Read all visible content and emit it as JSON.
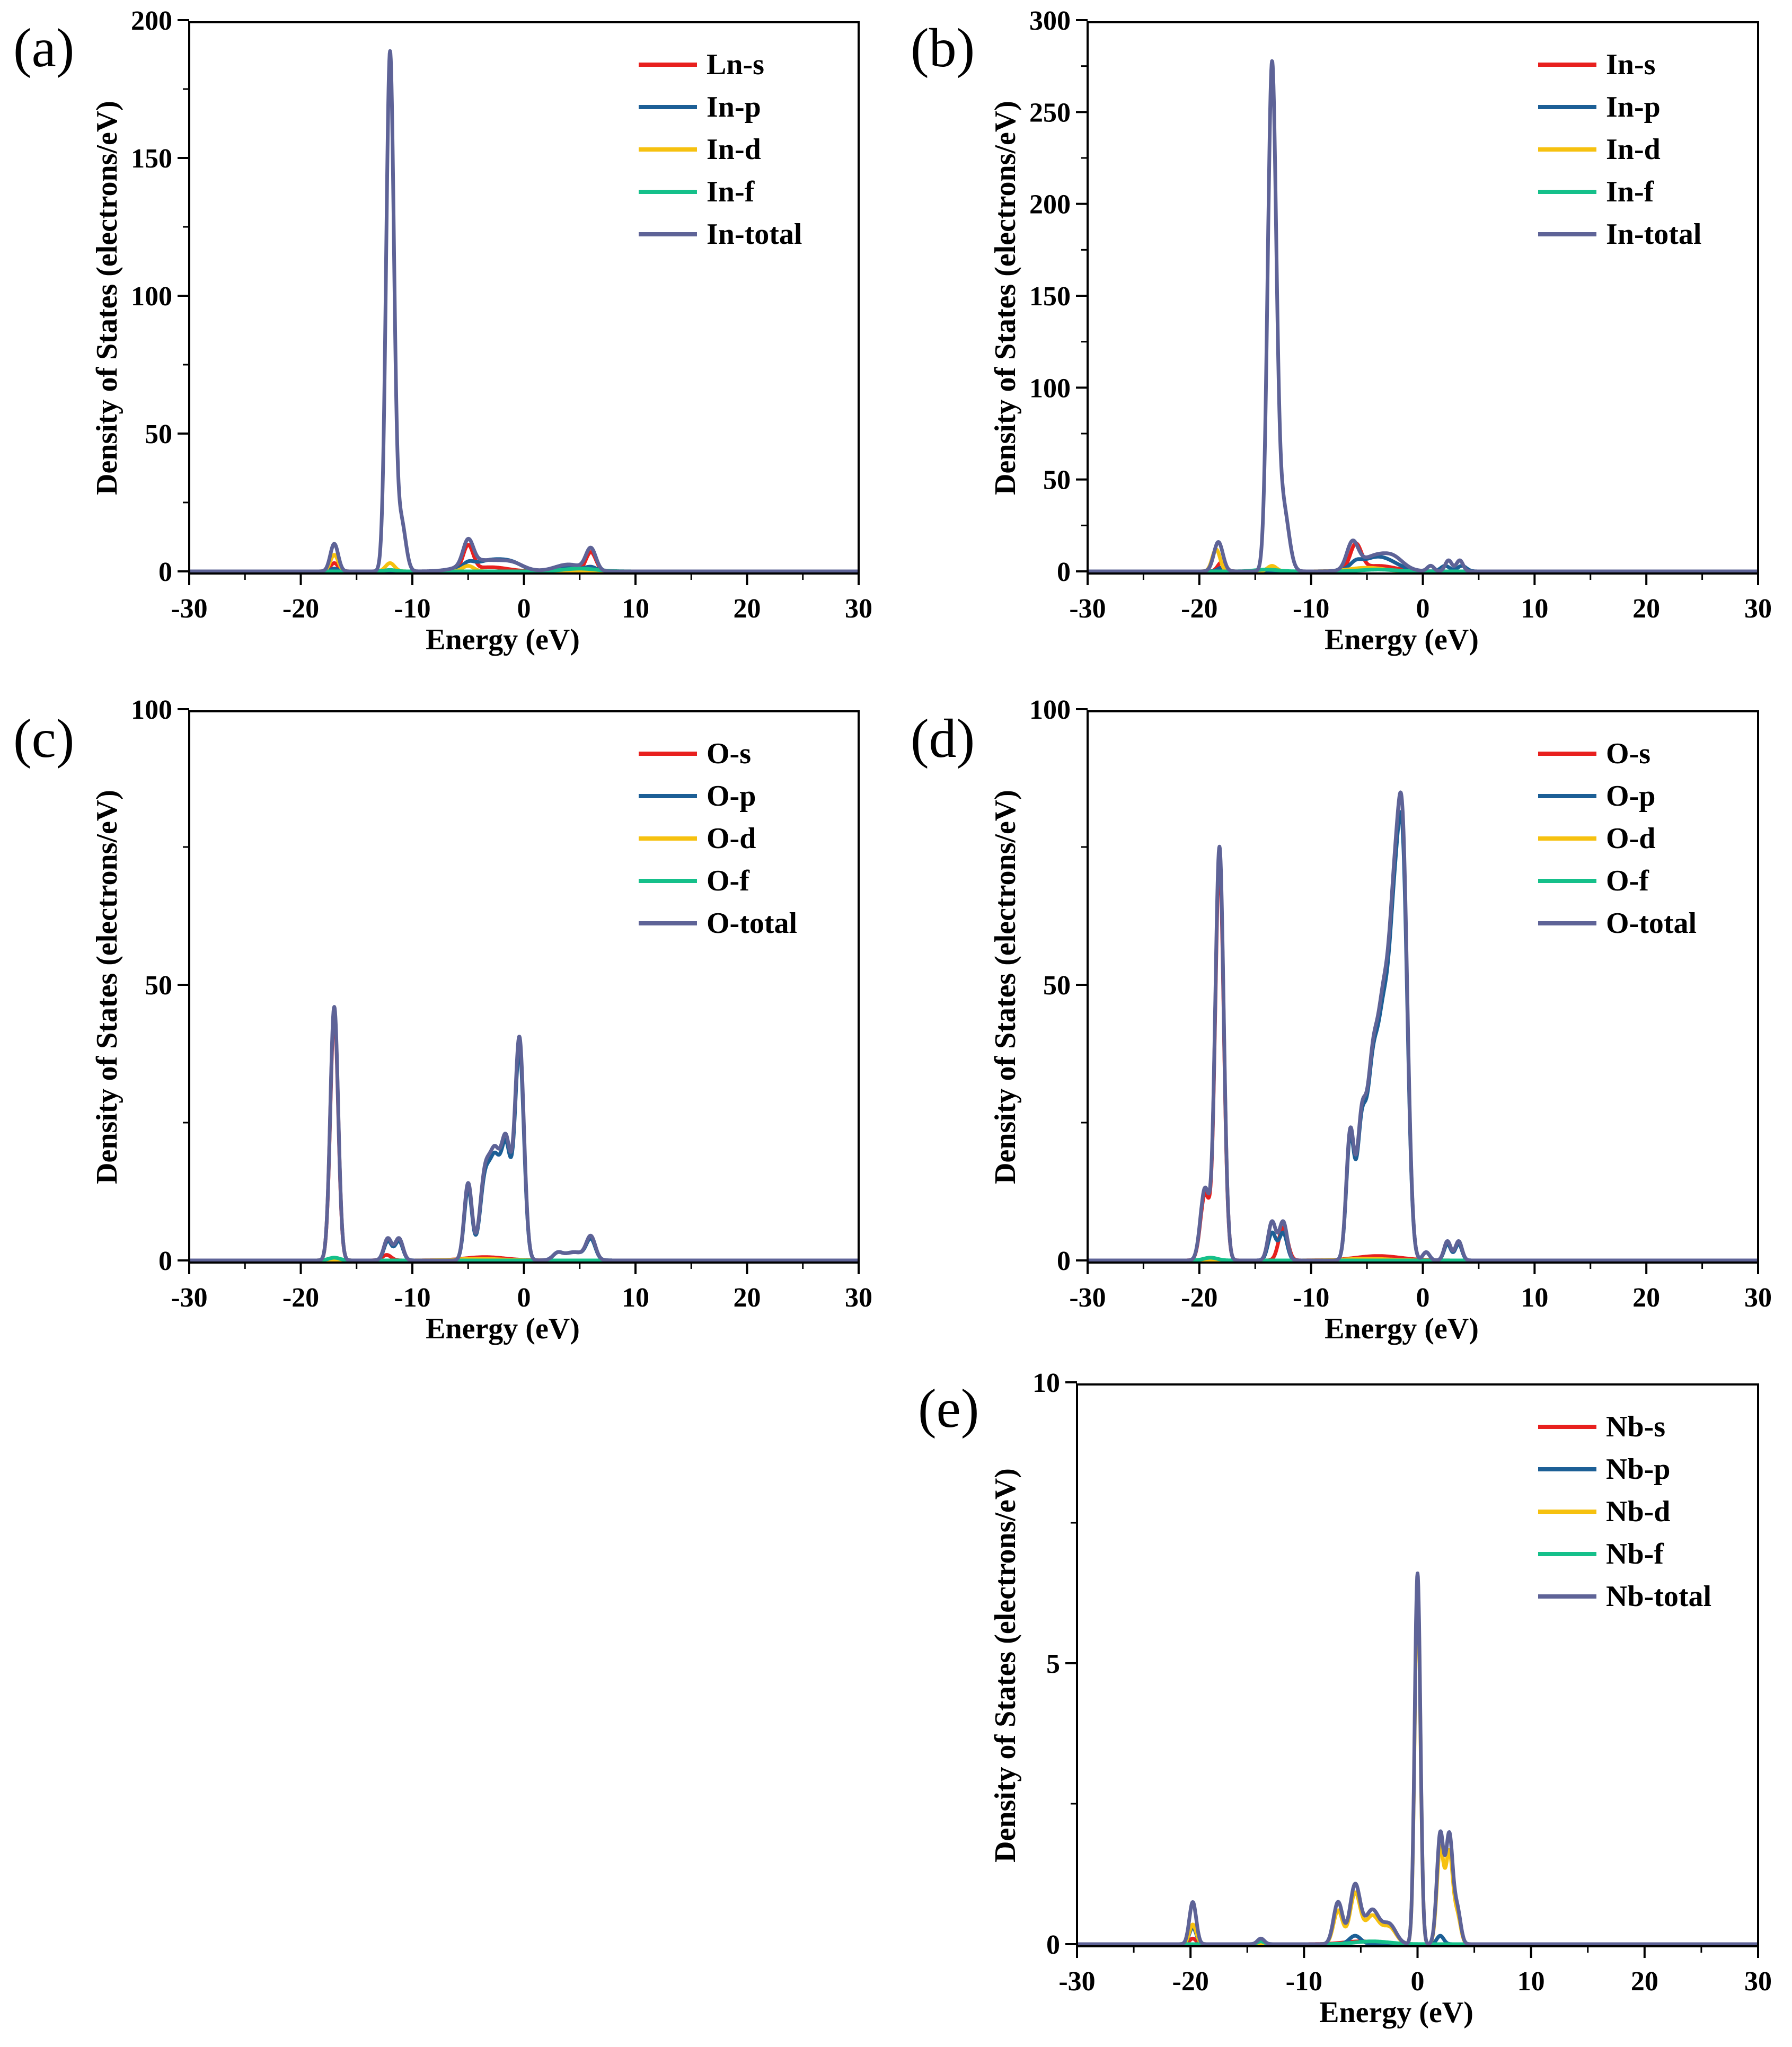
{
  "colors": {
    "s": "#e8201e",
    "p": "#1c5f96",
    "d": "#f6c10f",
    "f": "#15c08a",
    "total": "#5e6397"
  },
  "chart_data": [
    {
      "id": "a",
      "panel_label": "(a)",
      "type": "line",
      "xlabel": "Energy (eV)",
      "ylabel": "Density of States (electrons/eV)",
      "xlim": [
        -30,
        30
      ],
      "ylim": [
        0,
        200
      ],
      "xticks": [
        -30,
        -20,
        -10,
        0,
        10,
        20,
        30
      ],
      "yticks": [
        0,
        50,
        100,
        150,
        200
      ],
      "legend": [
        "Ln-s",
        "In-p",
        "In-d",
        "In-f",
        "In-total"
      ],
      "series": [
        {
          "name": "Ln-s",
          "key": "s",
          "peaks": [
            [
              -17,
              3,
              0.35
            ],
            [
              -5,
              9,
              0.45
            ],
            [
              6,
              7,
              0.45
            ]
          ],
          "bumps": [
            [
              -3,
              1.5,
              1.5
            ]
          ]
        },
        {
          "name": "In-p",
          "key": "p",
          "peaks": [
            [
              -17,
              1,
              0.35
            ],
            [
              -5,
              2,
              0.5
            ],
            [
              6,
              1.5,
              0.5
            ]
          ],
          "bumps": [
            [
              -3,
              4,
              1.5
            ],
            [
              -1,
              2,
              1
            ],
            [
              4,
              1.5,
              1
            ]
          ]
        },
        {
          "name": "In-d",
          "key": "d",
          "peaks": [
            [
              -17,
              6,
              0.35
            ],
            [
              -12,
              3,
              0.4
            ],
            [
              -5,
              2,
              0.5
            ]
          ],
          "bumps": []
        },
        {
          "name": "In-f",
          "key": "f",
          "peaks": [
            [
              -12,
              0.5,
              0.5
            ]
          ],
          "bumps": [
            [
              5,
              1,
              1.5
            ]
          ]
        },
        {
          "name": "In-total",
          "key": "total",
          "peaks": [
            [
              -17,
              10,
              0.35
            ],
            [
              -12,
              188,
              0.35
            ],
            [
              -11,
              18,
              0.4
            ],
            [
              -5,
              9,
              0.45
            ],
            [
              6,
              8,
              0.45
            ]
          ],
          "bumps": [
            [
              -3.5,
              4,
              1.8
            ],
            [
              -1,
              2,
              1
            ],
            [
              4,
              2.5,
              1.2
            ]
          ]
        }
      ]
    },
    {
      "id": "b",
      "panel_label": "(b)",
      "type": "line",
      "xlabel": "Energy (eV)",
      "ylabel": "Density of States (electrons/eV)",
      "xlim": [
        -30,
        30
      ],
      "ylim": [
        0,
        300
      ],
      "xticks": [
        -30,
        -20,
        -10,
        0,
        10,
        20,
        30
      ],
      "yticks": [
        0,
        50,
        100,
        150,
        200,
        250,
        300
      ],
      "legend": [
        "In-s",
        "In-p",
        "In-d",
        "In-f",
        "In-total"
      ],
      "series": [
        {
          "name": "In-s",
          "key": "s",
          "peaks": [
            [
              -18,
              5,
              0.35
            ],
            [
              -6,
              14,
              0.5
            ]
          ],
          "bumps": [
            [
              -4,
              3,
              1.5
            ]
          ]
        },
        {
          "name": "In-p",
          "key": "p",
          "peaks": [
            [
              -18,
              2,
              0.35
            ],
            [
              -6,
              3,
              0.5
            ]
          ],
          "bumps": [
            [
              -4,
              8,
              1.5
            ],
            [
              2,
              3,
              0.4
            ],
            [
              3.5,
              3,
              0.4
            ]
          ]
        },
        {
          "name": "In-d",
          "key": "d",
          "peaks": [
            [
              -18.5,
              12,
              0.35
            ],
            [
              -13.5,
              3,
              0.4
            ]
          ],
          "bumps": [
            [
              -5,
              2,
              1.5
            ]
          ]
        },
        {
          "name": "In-f",
          "key": "f",
          "peaks": [],
          "bumps": [
            [
              -14,
              1,
              1
            ],
            [
              -4,
              1,
              1.5
            ]
          ]
        },
        {
          "name": "In-total",
          "key": "total",
          "peaks": [
            [
              -18.3,
              16,
              0.4
            ],
            [
              -13.5,
              273,
              0.38
            ],
            [
              -12.5,
              35,
              0.5
            ],
            [
              -6.3,
              14,
              0.5
            ],
            [
              0.7,
              3,
              0.3
            ],
            [
              2.3,
              6,
              0.3
            ],
            [
              3.3,
              6,
              0.3
            ]
          ],
          "bumps": [
            [
              -4,
              9,
              1.5
            ],
            [
              -2.5,
              3,
              0.8
            ]
          ]
        }
      ]
    },
    {
      "id": "c",
      "panel_label": "(c)",
      "type": "line",
      "xlabel": "Energy (eV)",
      "ylabel": "Density of States (electrons/eV)",
      "xlim": [
        -30,
        30
      ],
      "ylim": [
        0,
        100
      ],
      "xticks": [
        -30,
        -20,
        -10,
        0,
        10,
        20,
        30
      ],
      "yticks": [
        0,
        50,
        100
      ],
      "legend": [
        "O-s",
        "O-p",
        "O-d",
        "O-f",
        "O-total"
      ],
      "series": [
        {
          "name": "O-s",
          "key": "s",
          "peaks": [
            [
              -17,
              45,
              0.35
            ],
            [
              -12.3,
              1,
              0.4
            ]
          ],
          "bumps": [
            [
              -3.5,
              0.6,
              1.8
            ]
          ]
        },
        {
          "name": "O-p",
          "key": "p",
          "peaks": [
            [
              -12.2,
              3.5,
              0.35
            ],
            [
              -11.2,
              3.5,
              0.35
            ],
            [
              -5,
              13,
              0.35
            ],
            [
              -3.5,
              14,
              0.45
            ],
            [
              -2.6,
              16,
              0.45
            ],
            [
              -1.6,
              20,
              0.45
            ],
            [
              -0.4,
              38,
              0.4
            ],
            [
              3,
              1,
              0.4
            ],
            [
              6,
              3.5,
              0.4
            ]
          ],
          "bumps": [
            [
              4.5,
              1.5,
              1
            ]
          ]
        },
        {
          "name": "O-d",
          "key": "d",
          "peaks": [],
          "bumps": [
            [
              -4,
              0.3,
              2
            ]
          ]
        },
        {
          "name": "O-f",
          "key": "f",
          "peaks": [
            [
              -17,
              0.5,
              0.5
            ]
          ],
          "bumps": []
        },
        {
          "name": "O-total",
          "key": "total",
          "peaks": [
            [
              -17,
              46,
              0.35
            ],
            [
              -12.2,
              4,
              0.35
            ],
            [
              -11.2,
              4,
              0.35
            ],
            [
              -5,
              14,
              0.35
            ],
            [
              -3.5,
              15,
              0.45
            ],
            [
              -2.6,
              17,
              0.45
            ],
            [
              -1.6,
              21,
              0.45
            ],
            [
              -0.4,
              40,
              0.4
            ],
            [
              3,
              1,
              0.4
            ],
            [
              6,
              4,
              0.4
            ]
          ],
          "bumps": [
            [
              4.5,
              1.5,
              1
            ]
          ]
        }
      ]
    },
    {
      "id": "d",
      "panel_label": "(d)",
      "type": "line",
      "xlabel": "Energy (eV)",
      "ylabel": "Density of States (electrons/eV)",
      "xlim": [
        -30,
        30
      ],
      "ylim": [
        0,
        100
      ],
      "xticks": [
        -30,
        -20,
        -10,
        0,
        10,
        20,
        30
      ],
      "yticks": [
        0,
        50,
        100
      ],
      "legend": [
        "O-s",
        "O-p",
        "O-d",
        "O-f",
        "O-total"
      ],
      "series": [
        {
          "name": "O-s",
          "key": "s",
          "peaks": [
            [
              -19.5,
              12,
              0.4
            ],
            [
              -18.2,
              73,
              0.38
            ],
            [
              -12.5,
              6,
              0.4
            ]
          ],
          "bumps": [
            [
              -4,
              0.8,
              2
            ]
          ]
        },
        {
          "name": "O-p",
          "key": "p",
          "peaks": [
            [
              -13.5,
              5,
              0.35
            ],
            [
              -12.5,
              5,
              0.35
            ],
            [
              -6.5,
              22,
              0.35
            ],
            [
              -5.5,
              22,
              0.4
            ],
            [
              -4.5,
              32,
              0.5
            ],
            [
              -3.5,
              38,
              0.5
            ],
            [
              -2.6,
              47,
              0.45
            ],
            [
              -1.8,
              68,
              0.45
            ],
            [
              0.3,
              1.5,
              0.3
            ],
            [
              2.2,
              3,
              0.3
            ],
            [
              3.2,
              3,
              0.3
            ]
          ],
          "bumps": []
        },
        {
          "name": "O-d",
          "key": "d",
          "peaks": [],
          "bumps": [
            [
              -5,
              0.3,
              2
            ]
          ]
        },
        {
          "name": "O-f",
          "key": "f",
          "peaks": [
            [
              -19,
              0.5,
              0.6
            ]
          ],
          "bumps": []
        },
        {
          "name": "O-total",
          "key": "total",
          "peaks": [
            [
              -19.5,
              13,
              0.4
            ],
            [
              -18.2,
              75,
              0.38
            ],
            [
              -13.5,
              7,
              0.35
            ],
            [
              -12.5,
              7,
              0.35
            ],
            [
              -6.5,
              23,
              0.35
            ],
            [
              -5.5,
              23,
              0.4
            ],
            [
              -4.5,
              33,
              0.5
            ],
            [
              -3.5,
              40,
              0.5
            ],
            [
              -2.6,
              49,
              0.45
            ],
            [
              -1.8,
              71,
              0.45
            ],
            [
              0.3,
              1.5,
              0.3
            ],
            [
              2.2,
              3.5,
              0.3
            ],
            [
              3.2,
              3.5,
              0.3
            ]
          ],
          "bumps": []
        }
      ]
    },
    {
      "id": "e",
      "panel_label": "(e)",
      "type": "line",
      "xlabel": "Energy (eV)",
      "ylabel": "Density of States (electrons/eV)",
      "xlim": [
        -30,
        30
      ],
      "ylim": [
        0,
        10
      ],
      "xticks": [
        -30,
        -20,
        -10,
        0,
        10,
        20,
        30
      ],
      "yticks": [
        0,
        5,
        10
      ],
      "legend": [
        "Nb-s",
        "Nb-p",
        "Nb-d",
        "Nb-f",
        "Nb-total"
      ],
      "series": [
        {
          "name": "Nb-s",
          "key": "s",
          "peaks": [
            [
              -19.8,
              0.1,
              0.3
            ]
          ],
          "bumps": [
            [
              -5,
              0.05,
              1.5
            ]
          ]
        },
        {
          "name": "Nb-p",
          "key": "p",
          "peaks": [
            [
              -19.8,
              0.3,
              0.3
            ],
            [
              -5.5,
              0.15,
              0.5
            ],
            [
              2,
              0.15,
              0.3
            ]
          ],
          "bumps": []
        },
        {
          "name": "Nb-d",
          "key": "d",
          "peaks": [
            [
              -19.8,
              0.35,
              0.3
            ],
            [
              -7,
              0.6,
              0.4
            ],
            [
              -5.5,
              0.9,
              0.45
            ],
            [
              -4,
              0.5,
              0.6
            ],
            [
              -2.5,
              0.3,
              0.6
            ],
            [
              0,
              6.4,
              0.25
            ],
            [
              2,
              1.7,
              0.3
            ],
            [
              2.8,
              1.6,
              0.3
            ],
            [
              3.5,
              0.5,
              0.3
            ]
          ],
          "bumps": []
        },
        {
          "name": "Nb-f",
          "key": "f",
          "peaks": [
            [
              -13.8,
              0.05,
              0.3
            ]
          ],
          "bumps": [
            [
              -4,
              0.05,
              1.5
            ]
          ]
        },
        {
          "name": "Nb-total",
          "key": "total",
          "peaks": [
            [
              -19.8,
              0.75,
              0.3
            ],
            [
              -13.8,
              0.1,
              0.3
            ],
            [
              -7,
              0.75,
              0.4
            ],
            [
              -5.5,
              1.05,
              0.45
            ],
            [
              -4,
              0.6,
              0.6
            ],
            [
              -2.5,
              0.35,
              0.6
            ],
            [
              0,
              6.6,
              0.25
            ],
            [
              2,
              1.95,
              0.3
            ],
            [
              2.8,
              1.9,
              0.3
            ],
            [
              3.5,
              0.6,
              0.3
            ]
          ],
          "bumps": []
        }
      ]
    }
  ]
}
